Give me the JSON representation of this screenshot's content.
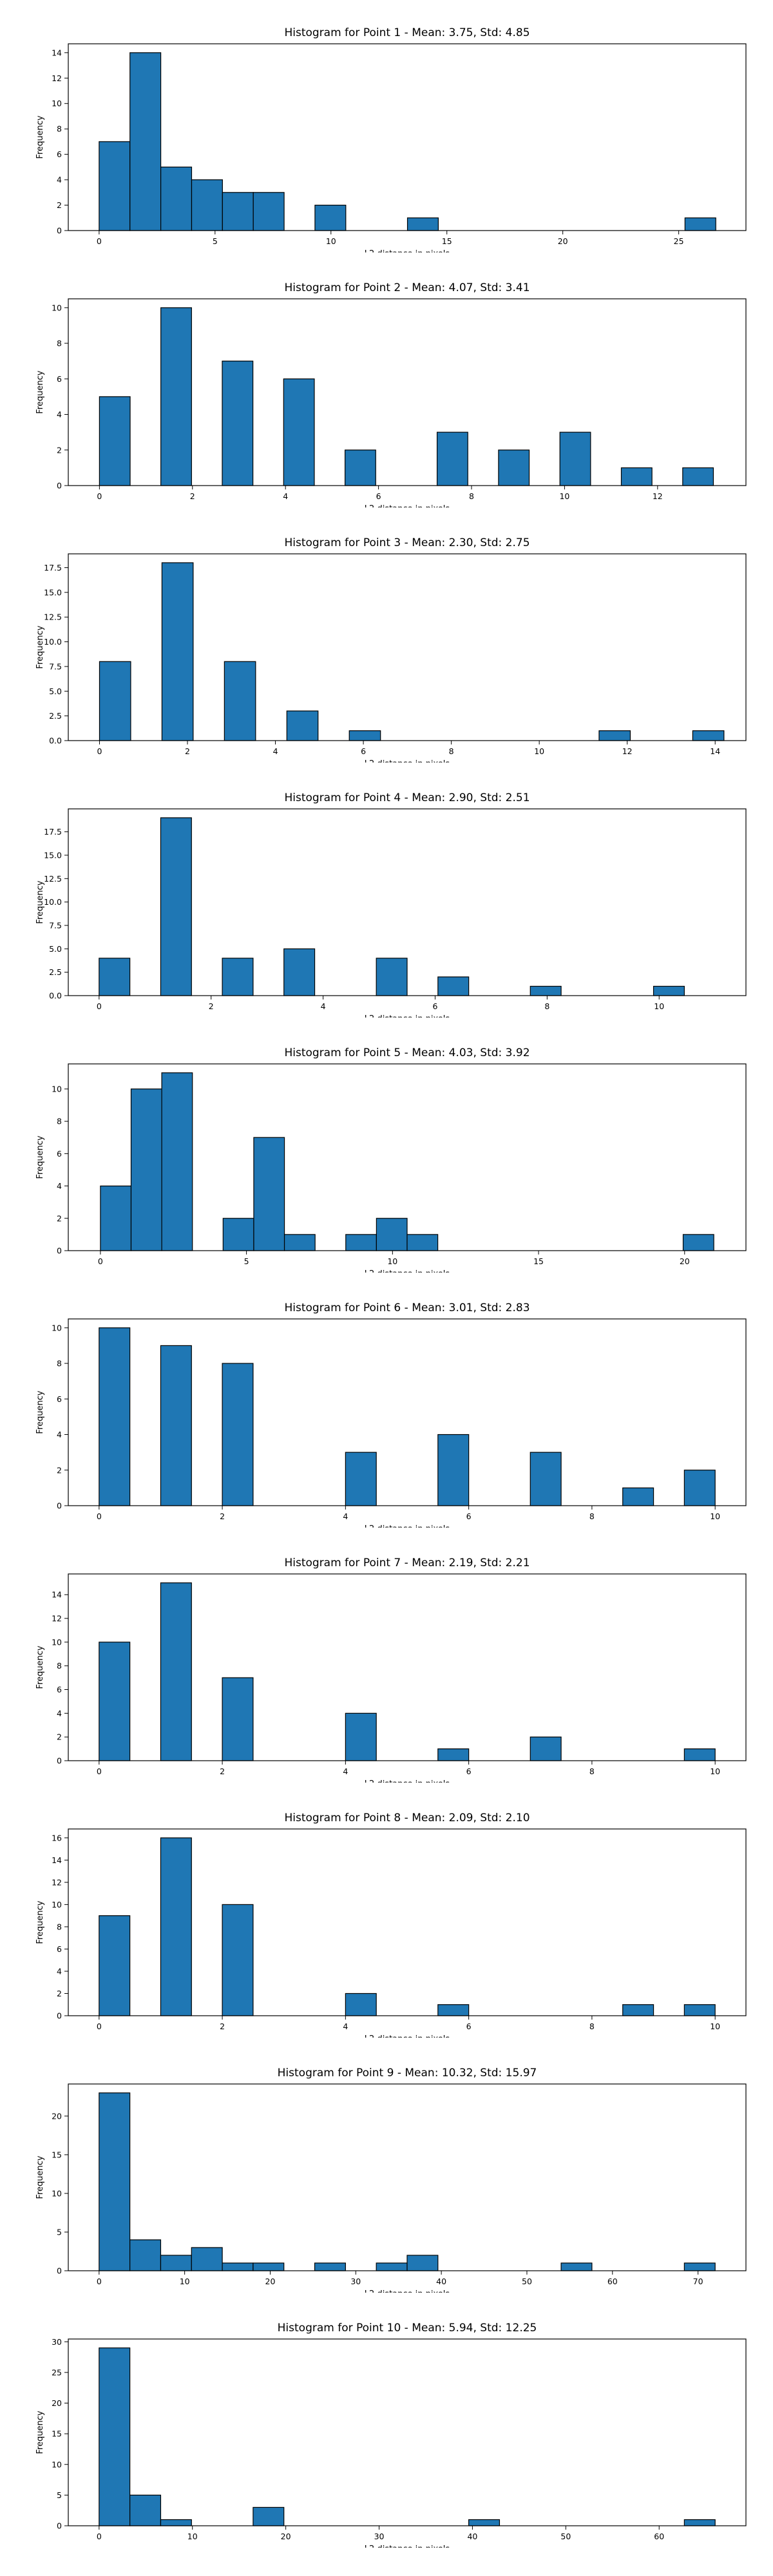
{
  "chart_data": [
    {
      "type": "bar",
      "title": "Histogram for Point 1 - Mean: 3.75, Std: 4.85",
      "xlabel": "L2 distance in pixels",
      "ylabel": "Frequency",
      "xlim": [
        -1.33,
        27.9
      ],
      "ylim": [
        0,
        14.7
      ],
      "xticks": [
        0,
        5,
        10,
        15,
        20,
        25
      ],
      "yticks": [
        0,
        2,
        4,
        6,
        8,
        10,
        12,
        14
      ],
      "ytick_labels": [
        "0",
        "2",
        "4",
        "6",
        "8",
        "10",
        "12",
        "14"
      ],
      "bins": [
        [
          0,
          1.33,
          7
        ],
        [
          1.33,
          2.66,
          14
        ],
        [
          2.66,
          3.99,
          5
        ],
        [
          3.99,
          5.32,
          4
        ],
        [
          5.32,
          6.65,
          3
        ],
        [
          6.65,
          7.98,
          3
        ],
        [
          9.31,
          10.64,
          2
        ],
        [
          13.3,
          14.63,
          1
        ],
        [
          25.27,
          26.6,
          1
        ]
      ]
    },
    {
      "type": "bar",
      "title": "Histogram for Point 2 - Mean: 4.07, Std: 3.41",
      "xlabel": "L2 distance in pixels",
      "ylabel": "Frequency",
      "xlim": [
        -0.67,
        13.9
      ],
      "ylim": [
        0,
        10.5
      ],
      "xticks": [
        0,
        2,
        4,
        6,
        8,
        10,
        12
      ],
      "yticks": [
        0,
        2,
        4,
        6,
        8,
        10
      ],
      "ytick_labels": [
        "0",
        "2",
        "4",
        "6",
        "8",
        "10"
      ],
      "bins": [
        [
          0,
          0.66,
          5
        ],
        [
          1.32,
          1.98,
          10
        ],
        [
          2.64,
          3.3,
          7
        ],
        [
          3.96,
          4.62,
          6
        ],
        [
          5.28,
          5.94,
          2
        ],
        [
          7.26,
          7.92,
          3
        ],
        [
          8.58,
          9.24,
          2
        ],
        [
          9.9,
          10.56,
          3
        ],
        [
          11.22,
          11.88,
          1
        ],
        [
          12.54,
          13.2,
          1
        ]
      ]
    },
    {
      "type": "bar",
      "title": "Histogram for Point 3 - Mean: 2.30, Std: 2.75",
      "xlabel": "L2 distance in pixels",
      "ylabel": "Frequency",
      "xlim": [
        -0.71,
        14.7
      ],
      "ylim": [
        0,
        18.9
      ],
      "xticks": [
        0,
        2,
        4,
        6,
        8,
        10,
        12,
        14
      ],
      "yticks": [
        0,
        2.5,
        5,
        7.5,
        10,
        12.5,
        15,
        17.5
      ],
      "ytick_labels": [
        "0.0",
        "2.5",
        "5.0",
        "7.5",
        "10.0",
        "12.5",
        "15.0",
        "17.5"
      ],
      "bins": [
        [
          0,
          0.71,
          8
        ],
        [
          1.42,
          2.13,
          18
        ],
        [
          2.84,
          3.55,
          8
        ],
        [
          4.26,
          4.97,
          3
        ],
        [
          5.68,
          6.39,
          1
        ],
        [
          11.36,
          12.07,
          1
        ],
        [
          13.49,
          14.2,
          1
        ]
      ]
    },
    {
      "type": "bar",
      "title": "Histogram for Point 4 - Mean: 2.90, Std: 2.51",
      "xlabel": "L2 distance in pixels",
      "ylabel": "Frequency",
      "xlim": [
        -0.55,
        11.55
      ],
      "ylim": [
        0,
        19.95
      ],
      "xticks": [
        0,
        2,
        4,
        6,
        8,
        10
      ],
      "yticks": [
        0,
        2.5,
        5,
        7.5,
        10,
        12.5,
        15,
        17.5
      ],
      "ytick_labels": [
        "0.0",
        "2.5",
        "5.0",
        "7.5",
        "10.0",
        "12.5",
        "15.0",
        "17.5"
      ],
      "bins": [
        [
          0,
          0.55,
          4
        ],
        [
          1.1,
          1.65,
          19
        ],
        [
          2.2,
          2.75,
          4
        ],
        [
          3.3,
          3.85,
          5
        ],
        [
          4.95,
          5.5,
          4
        ],
        [
          6.05,
          6.6,
          2
        ],
        [
          7.7,
          8.25,
          1
        ],
        [
          9.9,
          10.45,
          1
        ]
      ]
    },
    {
      "type": "bar",
      "title": "Histogram for Point 5 - Mean: 4.03, Std: 3.92",
      "xlabel": "L2 distance in pixels",
      "ylabel": "Frequency",
      "xlim": [
        -1.1,
        22.1
      ],
      "ylim": [
        0,
        11.55
      ],
      "xticks": [
        0,
        5,
        10,
        15,
        20
      ],
      "yticks": [
        0,
        2,
        4,
        6,
        8,
        10
      ],
      "ytick_labels": [
        "0",
        "2",
        "4",
        "6",
        "8",
        "10"
      ],
      "bins": [
        [
          0,
          1.05,
          4
        ],
        [
          1.05,
          2.1,
          10
        ],
        [
          2.1,
          3.15,
          11
        ],
        [
          4.2,
          5.25,
          2
        ],
        [
          5.25,
          6.3,
          7
        ],
        [
          6.3,
          7.35,
          1
        ],
        [
          8.4,
          9.45,
          1
        ],
        [
          9.45,
          10.5,
          2
        ],
        [
          10.5,
          11.55,
          1
        ],
        [
          19.95,
          21.0,
          1
        ]
      ]
    },
    {
      "type": "bar",
      "title": "Histogram for Point 6 - Mean: 3.01, Std: 2.83",
      "xlabel": "L2 distance in pixels",
      "ylabel": "Frequency",
      "xlim": [
        -0.5,
        10.5
      ],
      "ylim": [
        0,
        10.5
      ],
      "xticks": [
        0,
        2,
        4,
        6,
        8,
        10
      ],
      "yticks": [
        0,
        2,
        4,
        6,
        8,
        10
      ],
      "ytick_labels": [
        "0",
        "2",
        "4",
        "6",
        "8",
        "10"
      ],
      "bins": [
        [
          0,
          0.5,
          10
        ],
        [
          1.0,
          1.5,
          9
        ],
        [
          2.0,
          2.5,
          8
        ],
        [
          4.0,
          4.5,
          3
        ],
        [
          5.5,
          6.0,
          4
        ],
        [
          7.0,
          7.5,
          3
        ],
        [
          8.5,
          9.0,
          1
        ],
        [
          9.5,
          10.0,
          2
        ]
      ]
    },
    {
      "type": "bar",
      "title": "Histogram for Point 7 - Mean: 2.19, Std: 2.21",
      "xlabel": "L2 distance in pixels",
      "ylabel": "Frequency",
      "xlim": [
        -0.5,
        10.5
      ],
      "ylim": [
        0,
        15.75
      ],
      "xticks": [
        0,
        2,
        4,
        6,
        8,
        10
      ],
      "yticks": [
        0,
        2,
        4,
        6,
        8,
        10,
        12,
        14
      ],
      "ytick_labels": [
        "0",
        "2",
        "4",
        "6",
        "8",
        "10",
        "12",
        "14"
      ],
      "bins": [
        [
          0,
          0.5,
          10
        ],
        [
          1.0,
          1.5,
          15
        ],
        [
          2.0,
          2.5,
          7
        ],
        [
          4.0,
          4.5,
          4
        ],
        [
          5.5,
          6.0,
          1
        ],
        [
          7.0,
          7.5,
          2
        ],
        [
          9.5,
          10.0,
          1
        ]
      ]
    },
    {
      "type": "bar",
      "title": "Histogram for Point 8 - Mean: 2.09, Std: 2.10",
      "xlabel": "L2 distance in pixels",
      "ylabel": "Frequency",
      "xlim": [
        -0.5,
        10.5
      ],
      "ylim": [
        0,
        16.8
      ],
      "xticks": [
        0,
        2,
        4,
        6,
        8,
        10
      ],
      "yticks": [
        0,
        2,
        4,
        6,
        8,
        10,
        12,
        14,
        16
      ],
      "ytick_labels": [
        "0",
        "2",
        "4",
        "6",
        "8",
        "10",
        "12",
        "14",
        "16"
      ],
      "bins": [
        [
          0,
          0.5,
          9
        ],
        [
          1.0,
          1.5,
          16
        ],
        [
          2.0,
          2.5,
          10
        ],
        [
          4.0,
          4.5,
          2
        ],
        [
          5.5,
          6.0,
          1
        ],
        [
          8.5,
          9.0,
          1
        ],
        [
          9.5,
          10.0,
          1
        ]
      ]
    },
    {
      "type": "bar",
      "title": "Histogram for Point 9 - Mean: 10.32, Std: 15.97",
      "xlabel": "L2 distance in pixels",
      "ylabel": "Frequency",
      "xlim": [
        -3.6,
        75.6
      ],
      "ylim": [
        0,
        24.15
      ],
      "xticks": [
        0,
        10,
        20,
        30,
        40,
        50,
        60,
        70
      ],
      "yticks": [
        0,
        5,
        10,
        15,
        20
      ],
      "ytick_labels": [
        "0",
        "5",
        "10",
        "15",
        "20"
      ],
      "bins": [
        [
          0,
          3.6,
          23
        ],
        [
          3.6,
          7.2,
          4
        ],
        [
          7.2,
          10.8,
          2
        ],
        [
          10.8,
          14.4,
          3
        ],
        [
          14.4,
          18.0,
          1
        ],
        [
          18.0,
          21.6,
          1
        ],
        [
          25.2,
          28.8,
          1
        ],
        [
          32.4,
          36.0,
          1
        ],
        [
          36.0,
          39.6,
          2
        ],
        [
          54.0,
          57.6,
          1
        ],
        [
          68.4,
          72.0,
          1
        ]
      ]
    },
    {
      "type": "bar",
      "title": "Histogram for Point 10 - Mean: 5.94, Std: 12.25",
      "xlabel": "L2 distance in pixels",
      "ylabel": "Frequency",
      "xlim": [
        -3.3,
        69.3
      ],
      "ylim": [
        0,
        30.45
      ],
      "xticks": [
        0,
        10,
        20,
        30,
        40,
        50,
        60
      ],
      "yticks": [
        0,
        5,
        10,
        15,
        20,
        25,
        30
      ],
      "ytick_labels": [
        "0",
        "5",
        "10",
        "15",
        "20",
        "25",
        "30"
      ],
      "bins": [
        [
          0,
          3.3,
          29
        ],
        [
          3.3,
          6.6,
          5
        ],
        [
          6.6,
          9.9,
          1
        ],
        [
          16.5,
          19.8,
          3
        ],
        [
          39.6,
          42.9,
          1
        ],
        [
          62.7,
          66.0,
          1
        ]
      ]
    }
  ]
}
